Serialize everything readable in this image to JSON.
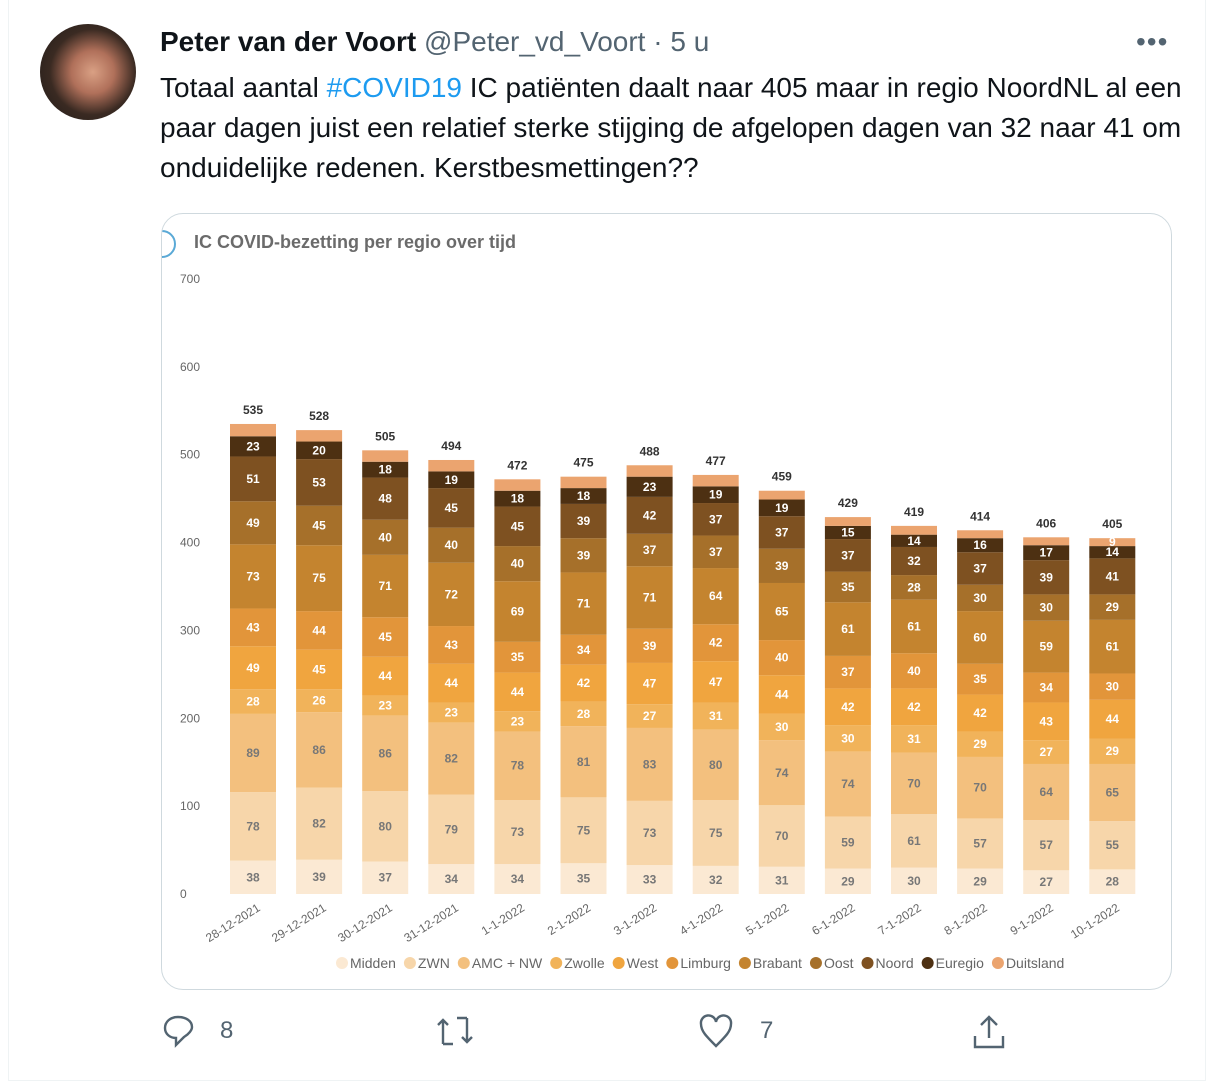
{
  "tweet": {
    "author_name": "Peter van der Voort",
    "handle": "@Peter_vd_Voort",
    "separator": "·",
    "time": "5 u",
    "more_icon": "ellipsis-icon",
    "text_before": "Totaal aantal ",
    "hashtag": "#COVID19",
    "text_after": " IC patiënten daalt naar 405 maar in regio NoordNL al een paar dagen juist een relatief sterke stijging de afgelopen dagen van 32 naar 41 om onduidelijke redenen. Kerstbesmettingen??"
  },
  "actions": {
    "reply_count": "8",
    "retweet_count": "",
    "like_count": "7"
  },
  "chart_data": {
    "type": "bar",
    "stacked": true,
    "title": "IC COVID-bezetting per regio over tijd",
    "ylim": [
      0,
      700
    ],
    "yticks": [
      "0",
      "100",
      "200",
      "300",
      "400",
      "500",
      "600",
      "700"
    ],
    "legend_position": "bottom",
    "categories": [
      "28-12-2021",
      "29-12-2021",
      "30-12-2021",
      "31-12-2021",
      "1-1-2022",
      "2-1-2022",
      "3-1-2022",
      "4-1-2022",
      "5-1-2022",
      "6-1-2022",
      "7-1-2022",
      "8-1-2022",
      "9-1-2022",
      "10-1-2022"
    ],
    "totals": [
      535,
      528,
      505,
      494,
      472,
      475,
      488,
      477,
      459,
      429,
      419,
      414,
      406,
      405
    ],
    "series": [
      {
        "name": "Midden",
        "color": "#fbe9d3",
        "values": [
          38,
          39,
          37,
          34,
          34,
          35,
          33,
          32,
          31,
          29,
          30,
          29,
          27,
          28
        ]
      },
      {
        "name": "ZWN",
        "color": "#f7d6aa",
        "values": [
          78,
          82,
          80,
          79,
          73,
          75,
          73,
          75,
          70,
          59,
          61,
          57,
          57,
          55
        ]
      },
      {
        "name": "AMC + NW",
        "color": "#f3c07e",
        "values": [
          89,
          86,
          86,
          82,
          78,
          81,
          83,
          80,
          74,
          74,
          70,
          70,
          64,
          65
        ]
      },
      {
        "name": "Zwolle",
        "color": "#f1b35a",
        "values": [
          28,
          26,
          23,
          23,
          23,
          28,
          27,
          31,
          30,
          30,
          31,
          29,
          27,
          29
        ]
      },
      {
        "name": "West",
        "color": "#f0a53f",
        "values": [
          49,
          45,
          44,
          44,
          44,
          42,
          47,
          47,
          44,
          42,
          42,
          42,
          43,
          44
        ]
      },
      {
        "name": "Limburg",
        "color": "#e2953a",
        "values": [
          43,
          44,
          45,
          43,
          35,
          34,
          39,
          42,
          40,
          37,
          40,
          35,
          34,
          30
        ]
      },
      {
        "name": "Brabant",
        "color": "#c4842f",
        "values": [
          73,
          75,
          71,
          72,
          69,
          71,
          71,
          64,
          65,
          61,
          61,
          60,
          59,
          61
        ]
      },
      {
        "name": "Oost",
        "color": "#a6702a",
        "values": [
          49,
          45,
          40,
          40,
          40,
          39,
          37,
          37,
          39,
          35,
          28,
          30,
          30,
          29
        ]
      },
      {
        "name": "Noord",
        "color": "#7e5121",
        "values": [
          51,
          53,
          48,
          45,
          45,
          39,
          42,
          37,
          37,
          37,
          32,
          37,
          39,
          41
        ]
      },
      {
        "name": "Euregio",
        "color": "#4d3012",
        "values": [
          23,
          20,
          18,
          19,
          18,
          18,
          23,
          19,
          19,
          15,
          14,
          16,
          17,
          14
        ]
      },
      {
        "name": "Duitsland",
        "color": "#eba46f",
        "values": [
          14,
          13,
          13,
          13,
          13,
          13,
          13,
          13,
          10,
          10,
          10,
          9,
          9,
          9
        ]
      }
    ]
  }
}
